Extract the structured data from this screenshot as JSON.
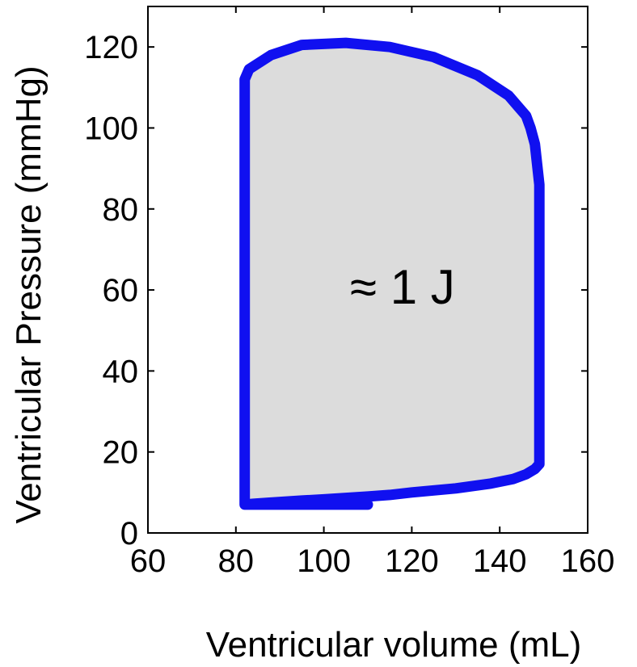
{
  "chart_data": {
    "type": "line",
    "xlabel": "Ventricular volume (mL)",
    "ylabel": "Ventricular Pressure (mmHg)",
    "xlim": [
      60,
      160
    ],
    "ylim": [
      0,
      130
    ],
    "xticks": [
      "60",
      "80",
      "100",
      "120",
      "140",
      "160"
    ],
    "yticks": [
      "0",
      "20",
      "40",
      "60",
      "80",
      "100",
      "120"
    ],
    "annotation": "≈ 1 J",
    "grid": false,
    "colors": {
      "loop": "#1010f0",
      "fill": "#dcdcdc",
      "axis": "#000000"
    },
    "series": [
      {
        "x": [
          82,
          84,
          88,
          95,
          100,
          110,
          115,
          120,
          130,
          138,
          143,
          146,
          148,
          149,
          149,
          149,
          148,
          147,
          146,
          142,
          135,
          125,
          115,
          105,
          95,
          88,
          83,
          82,
          82,
          82,
          82,
          82,
          82.5,
          83,
          84,
          86,
          88,
          92,
          95,
          100,
          105,
          110
        ],
        "y": [
          7,
          7.2,
          7.5,
          8,
          8.3,
          9,
          9.4,
          10,
          11,
          12.2,
          13.3,
          14.5,
          15.8,
          17,
          40,
          86,
          96,
          100,
          103,
          108,
          113,
          117.5,
          120,
          121,
          120.5,
          118,
          114.5,
          112,
          108,
          104,
          100,
          7,
          7,
          7,
          7,
          7,
          7,
          7,
          7,
          7,
          7,
          7
        ]
      }
    ]
  }
}
